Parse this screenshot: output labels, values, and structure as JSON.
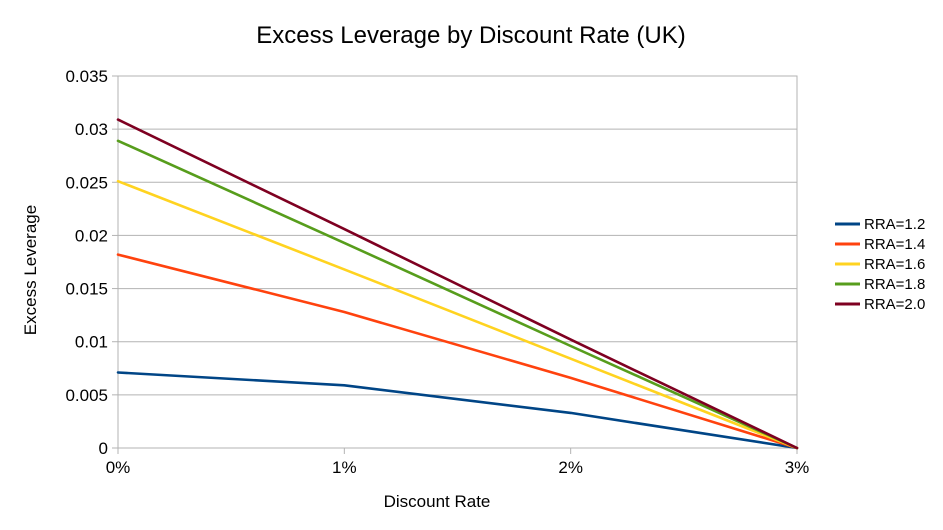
{
  "chart_data": {
    "type": "line",
    "title": "Excess Leverage by Discount Rate (UK)",
    "xlabel": "Discount Rate",
    "ylabel": "Excess Leverage",
    "categories": [
      "0%",
      "1%",
      "2%",
      "3%"
    ],
    "ylim": [
      0,
      0.035
    ],
    "yticks": [
      "0",
      "0.005",
      "0.01",
      "0.015",
      "0.02",
      "0.025",
      "0.03",
      "0.035"
    ],
    "grid": true,
    "legend_position": "right",
    "series": [
      {
        "name": "RRA=1.2",
        "color": "#004586",
        "values": [
          0.0071,
          0.0059,
          0.0033,
          0
        ]
      },
      {
        "name": "RRA=1.4",
        "color": "#ff420e",
        "values": [
          0.0182,
          0.0128,
          0.0066,
          0
        ]
      },
      {
        "name": "RRA=1.6",
        "color": "#ffd320",
        "values": [
          0.0251,
          0.0168,
          0.0084,
          0
        ]
      },
      {
        "name": "RRA=1.8",
        "color": "#579d1c",
        "values": [
          0.0289,
          0.0193,
          0.0096,
          0
        ]
      },
      {
        "name": "RRA=2.0",
        "color": "#7e0021",
        "values": [
          0.0309,
          0.0206,
          0.0102,
          0
        ]
      }
    ]
  }
}
